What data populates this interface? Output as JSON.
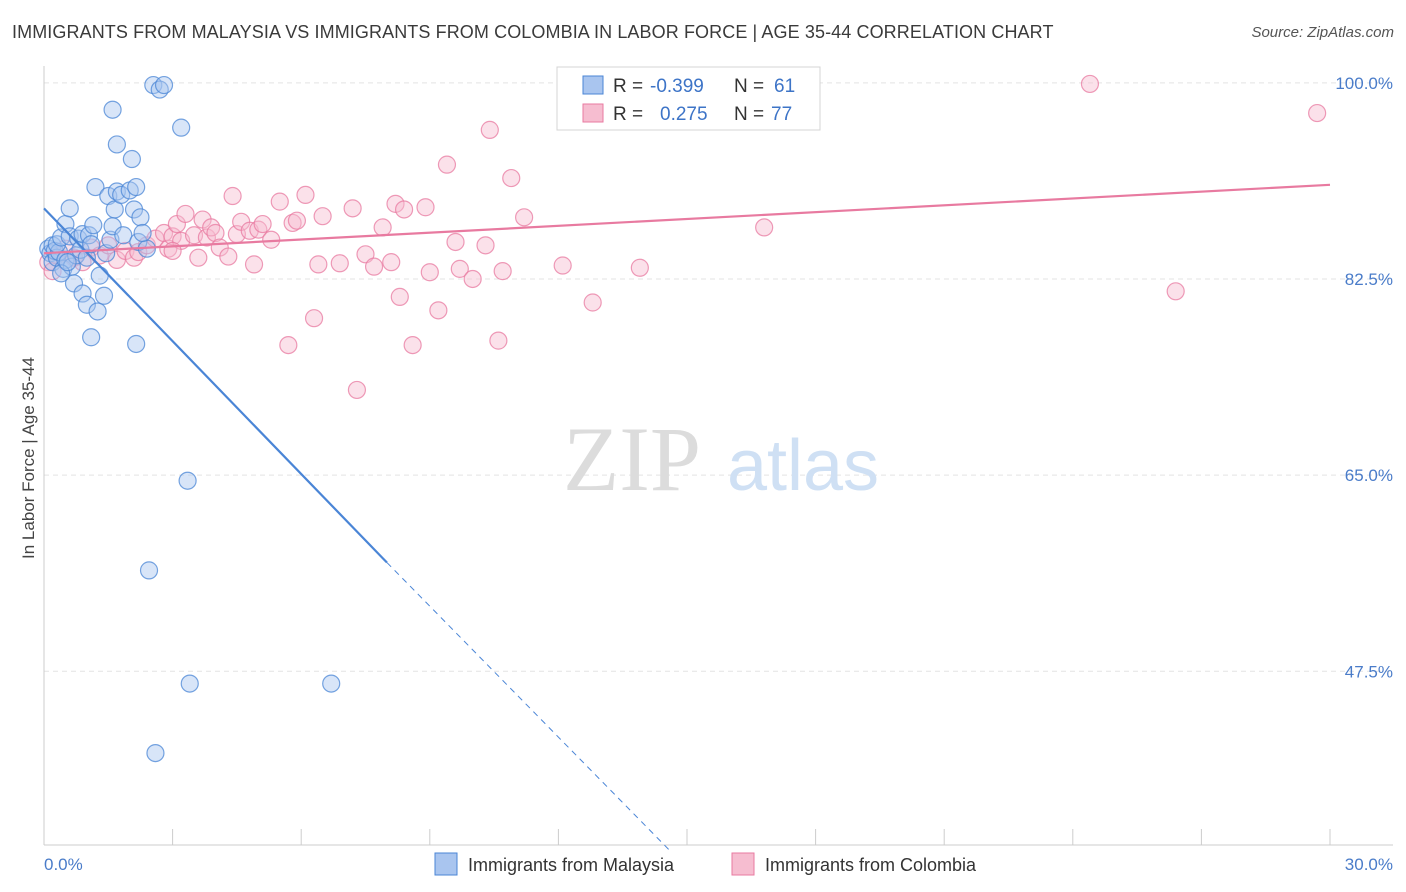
{
  "header": {
    "title": "IMMIGRANTS FROM MALAYSIA VS IMMIGRANTS FROM COLOMBIA IN LABOR FORCE | AGE 35-44 CORRELATION CHART",
    "source": "Source: ZipAtlas.com"
  },
  "watermark": {
    "zip": "ZIP",
    "atlas": "atlas"
  },
  "colors": {
    "malaysia": "#4a85d6",
    "malaysia_fill": "#a9c5ef",
    "colombia": "#e87aa0",
    "colombia_fill": "#f6bdd0",
    "tick": "#4a7cc9",
    "grid": "#e3e3e3"
  },
  "legend": {
    "r_label": "R =",
    "n_label": "N =",
    "malaysia_r": "-0.399",
    "malaysia_n": "61",
    "colombia_r": "0.275",
    "colombia_n": "77"
  },
  "chart_data": {
    "type": "scatter",
    "title": "IMMIGRANTS FROM MALAYSIA VS IMMIGRANTS FROM COLOMBIA IN LABOR FORCE | AGE 35-44 CORRELATION CHART",
    "xlabel": "",
    "ylabel": "In Labor Force | Age 35-44",
    "xlim": [
      0,
      30
    ],
    "ylim": [
      32,
      101.5
    ],
    "x_tick_labels": [
      "0.0%",
      "30.0%"
    ],
    "y_ticks": [
      47.5,
      65.0,
      82.5,
      100.0
    ],
    "y_tick_labels": [
      "47.5%",
      "65.0%",
      "82.5%",
      "100.0%"
    ],
    "grid": true,
    "legend_position": "top-center",
    "series": [
      {
        "name": "Immigrants from Malaysia",
        "r": -0.399,
        "n": 61,
        "trend": {
          "x0": 0.0,
          "y0": 88.8,
          "x1": 8.0,
          "y1": 57.2,
          "dash_to_x": 14.6,
          "dash_to_y": 31.5
        },
        "points": [
          [
            0.1,
            85.2
          ],
          [
            0.15,
            84.8
          ],
          [
            0.2,
            85.5
          ],
          [
            0.2,
            84.0
          ],
          [
            0.25,
            85.0
          ],
          [
            0.3,
            84.4
          ],
          [
            0.35,
            84.9
          ],
          [
            0.3,
            85.6
          ],
          [
            0.4,
            86.2
          ],
          [
            0.45,
            83.4
          ],
          [
            0.5,
            84.2
          ],
          [
            0.5,
            87.4
          ],
          [
            0.6,
            86.3
          ],
          [
            0.6,
            88.8
          ],
          [
            0.65,
            83.6
          ],
          [
            0.7,
            82.1
          ],
          [
            0.75,
            84.6
          ],
          [
            0.8,
            86.1
          ],
          [
            0.85,
            85.1
          ],
          [
            0.9,
            86.5
          ],
          [
            0.9,
            81.2
          ],
          [
            1.0,
            84.4
          ],
          [
            1.0,
            80.2
          ],
          [
            1.05,
            86.4
          ],
          [
            1.1,
            85.6
          ],
          [
            1.1,
            77.3
          ],
          [
            1.15,
            87.3
          ],
          [
            1.2,
            90.7
          ],
          [
            1.25,
            79.6
          ],
          [
            1.3,
            82.8
          ],
          [
            1.4,
            81.0
          ],
          [
            1.45,
            84.8
          ],
          [
            1.5,
            89.9
          ],
          [
            1.55,
            86.0
          ],
          [
            1.6,
            87.2
          ],
          [
            1.6,
            97.6
          ],
          [
            1.65,
            88.7
          ],
          [
            1.7,
            94.5
          ],
          [
            1.7,
            90.3
          ],
          [
            1.8,
            90.0
          ],
          [
            1.85,
            86.4
          ],
          [
            2.0,
            90.4
          ],
          [
            2.05,
            93.2
          ],
          [
            2.1,
            88.7
          ],
          [
            2.15,
            90.7
          ],
          [
            2.15,
            76.7
          ],
          [
            2.2,
            85.8
          ],
          [
            2.25,
            88.0
          ],
          [
            2.4,
            85.2
          ],
          [
            2.45,
            56.5
          ],
          [
            2.6,
            40.2
          ],
          [
            2.55,
            99.8
          ],
          [
            2.7,
            99.4
          ],
          [
            2.8,
            99.8
          ],
          [
            3.2,
            96.0
          ],
          [
            3.35,
            64.5
          ],
          [
            3.4,
            46.4
          ],
          [
            6.7,
            46.4
          ],
          [
            0.4,
            83.0
          ],
          [
            0.55,
            84.0
          ],
          [
            2.3,
            86.6
          ]
        ]
      },
      {
        "name": "Immigrants from Colombia",
        "r": 0.275,
        "n": 77,
        "trend": {
          "x0": 0.0,
          "y0": 84.8,
          "x1": 30.0,
          "y1": 90.9
        },
        "points": [
          [
            0.1,
            84.0
          ],
          [
            0.2,
            83.2
          ],
          [
            0.3,
            84.6
          ],
          [
            0.5,
            85.2
          ],
          [
            0.7,
            84.4
          ],
          [
            0.9,
            84.0
          ],
          [
            1.1,
            85.3
          ],
          [
            1.3,
            84.6
          ],
          [
            1.5,
            85.5
          ],
          [
            1.7,
            84.2
          ],
          [
            1.9,
            85.0
          ],
          [
            2.1,
            84.4
          ],
          [
            2.2,
            84.9
          ],
          [
            2.4,
            85.5
          ],
          [
            2.6,
            86.1
          ],
          [
            2.8,
            86.6
          ],
          [
            2.9,
            85.2
          ],
          [
            3.0,
            86.3
          ],
          [
            3.1,
            87.4
          ],
          [
            3.2,
            85.9
          ],
          [
            3.3,
            88.3
          ],
          [
            3.5,
            86.4
          ],
          [
            3.6,
            84.4
          ],
          [
            3.7,
            87.8
          ],
          [
            3.8,
            86.2
          ],
          [
            3.9,
            87.1
          ],
          [
            4.0,
            86.6
          ],
          [
            4.1,
            85.3
          ],
          [
            4.3,
            84.5
          ],
          [
            4.4,
            89.9
          ],
          [
            4.5,
            86.5
          ],
          [
            4.6,
            87.6
          ],
          [
            4.8,
            86.8
          ],
          [
            4.9,
            83.8
          ],
          [
            5.0,
            86.9
          ],
          [
            5.1,
            87.4
          ],
          [
            5.3,
            86.0
          ],
          [
            5.5,
            89.4
          ],
          [
            5.7,
            76.6
          ],
          [
            5.8,
            87.5
          ],
          [
            5.9,
            87.7
          ],
          [
            6.1,
            90.0
          ],
          [
            6.3,
            79.0
          ],
          [
            6.4,
            83.8
          ],
          [
            6.5,
            88.1
          ],
          [
            6.9,
            83.9
          ],
          [
            7.2,
            88.8
          ],
          [
            7.3,
            72.6
          ],
          [
            7.5,
            84.7
          ],
          [
            7.7,
            83.6
          ],
          [
            7.9,
            87.1
          ],
          [
            8.1,
            84.0
          ],
          [
            8.2,
            89.2
          ],
          [
            8.3,
            80.9
          ],
          [
            8.4,
            88.7
          ],
          [
            8.6,
            76.6
          ],
          [
            8.9,
            88.9
          ],
          [
            9.0,
            83.1
          ],
          [
            9.2,
            79.7
          ],
          [
            9.4,
            92.7
          ],
          [
            9.6,
            85.8
          ],
          [
            9.7,
            83.4
          ],
          [
            10.0,
            82.5
          ],
          [
            10.3,
            85.5
          ],
          [
            10.4,
            95.8
          ],
          [
            10.6,
            77.0
          ],
          [
            10.7,
            83.2
          ],
          [
            10.9,
            91.5
          ],
          [
            11.2,
            88.0
          ],
          [
            12.1,
            83.7
          ],
          [
            12.8,
            80.4
          ],
          [
            13.9,
            83.5
          ],
          [
            16.8,
            87.1
          ],
          [
            24.4,
            99.9
          ],
          [
            26.4,
            81.4
          ],
          [
            29.7,
            97.3
          ],
          [
            3.0,
            85.0
          ]
        ]
      }
    ]
  },
  "bottom_legend": {
    "malaysia_label": "Immigrants from Malaysia",
    "colombia_label": "Immigrants from Colombia"
  }
}
